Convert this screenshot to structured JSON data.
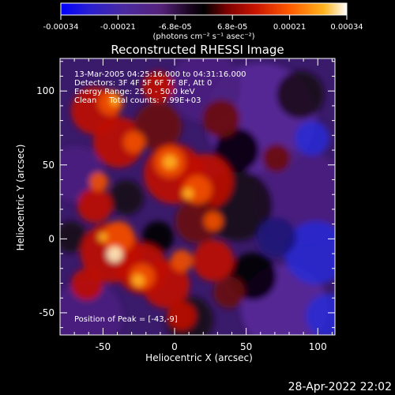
{
  "colorbar": {
    "tick_labels": [
      "-0.00034",
      "-0.00021",
      "-6.8e-05",
      "6.8e-05",
      "0.00021",
      "0.00034"
    ],
    "unit_label": "(photons cm⁻² s⁻¹ asec⁻²)"
  },
  "image": {
    "title": "Reconstructed RHESSI Image",
    "info_lines": [
      "13-Mar-2005 04:25:16.000 to 04:31:16.000",
      "Detectors: 3F 4F 5F 6F 7F 8F, Att 0",
      "Energy Range: 25.0 - 50.0 keV",
      "Clean     Total counts: 7.99E+03"
    ],
    "peak_label": "Position of Peak = [-43,-9]",
    "xlabel": "Heliocentric X (arcsec)",
    "ylabel": "Heliocentric Y (arcsec)",
    "xticks": [
      "-50",
      "0",
      "50",
      "100"
    ],
    "yticks": [
      "100",
      "50",
      "0",
      "-50"
    ],
    "xvalues": [
      -50,
      0,
      50,
      100
    ],
    "yvalues": [
      100,
      50,
      0,
      -50
    ],
    "xlim": [
      -80,
      112
    ],
    "ylim": [
      -65,
      122
    ]
  },
  "footer": {
    "timestamp": "28-Apr-2022 22:02"
  },
  "colors": {
    "colormap": [
      "#0000ff",
      "#2a1fd0",
      "#4a2aa0",
      "#55227a",
      "#3a1240",
      "#000000",
      "#7a0000",
      "#c81400",
      "#ff5a00",
      "#ffb41e",
      "#ffffff"
    ]
  }
}
